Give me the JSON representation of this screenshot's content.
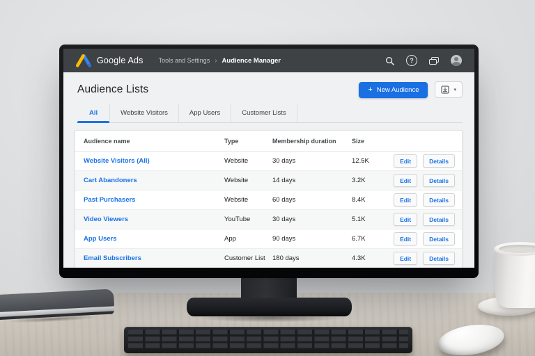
{
  "appbar": {
    "brand": "Google Ads",
    "breadcrumb": {
      "section": "Tools and Settings",
      "separator": "›",
      "current": "Audience Manager"
    },
    "help_glyph": "?",
    "icons": {
      "search": "magnifying-glass",
      "help": "question-mark-circle",
      "accounts": "overlapping-windows",
      "avatar": "user-photo"
    }
  },
  "page": {
    "title": "Audience Lists",
    "new_audience": {
      "plus": "+",
      "label": "New Audience"
    },
    "export": {
      "icon": "download",
      "caret": "▾"
    }
  },
  "tabs": [
    {
      "label": "All",
      "active": true
    },
    {
      "label": "Website Visitors",
      "active": false
    },
    {
      "label": "App Users",
      "active": false
    },
    {
      "label": "Customer Lists",
      "active": false
    }
  ],
  "table": {
    "columns": {
      "name": "Audience name",
      "type": "Type",
      "duration": "Membership duration",
      "size": "Size"
    },
    "rows": [
      {
        "name": "Website Visitors (All)",
        "type": "Website",
        "duration": "30 days",
        "size": "12.5K"
      },
      {
        "name": "Cart Abandoners",
        "type": "Website",
        "duration": "14 days",
        "size": "3.2K"
      },
      {
        "name": "Past Purchasers",
        "type": "Website",
        "duration": "60 days",
        "size": "8.4K"
      },
      {
        "name": "Video Viewers",
        "type": "YouTube",
        "duration": "30 days",
        "size": "5.1K"
      },
      {
        "name": "App Users",
        "type": "App",
        "duration": "90 days",
        "size": "6.7K"
      },
      {
        "name": "Email Subscribers",
        "type": "Customer List",
        "duration": "180 days",
        "size": "4.3K"
      }
    ],
    "actions": {
      "edit": "Edit",
      "details": "Details"
    }
  },
  "colors": {
    "accent_blue": "#1a6fe3",
    "link_blue": "#1a73e8",
    "appbar_bg": "#3e4245",
    "logo_blue": "#3584f0",
    "logo_yellow": "#fbbc04",
    "page_bg": "#f0f1f2"
  }
}
